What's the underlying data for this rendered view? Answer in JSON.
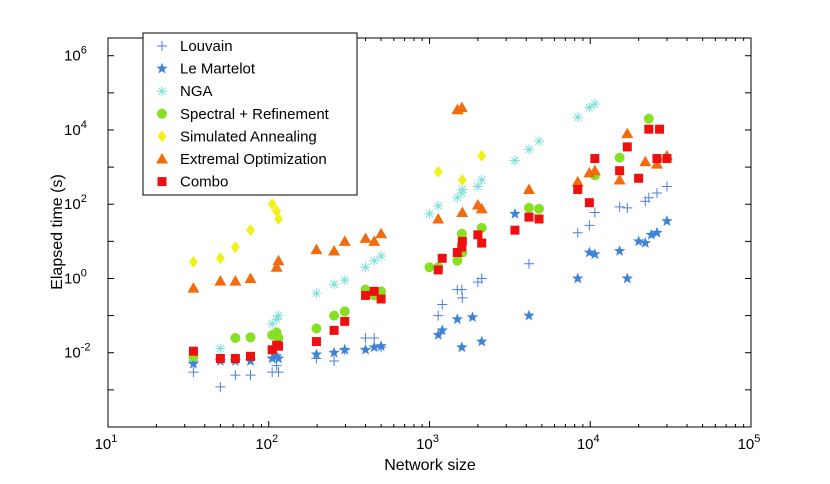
{
  "chart_data": {
    "type": "scatter",
    "title": "",
    "xlabel": "Network size",
    "ylabel": "Elapsed time (s)",
    "xscale": "log",
    "yscale": "log",
    "xlim": [
      10,
      100000
    ],
    "ylim": [
      0.0001,
      3000000
    ],
    "x_ticks": [
      {
        "base": "10",
        "exp": "1"
      },
      {
        "base": "10",
        "exp": "2"
      },
      {
        "base": "10",
        "exp": "3"
      },
      {
        "base": "10",
        "exp": "4"
      },
      {
        "base": "10",
        "exp": "5"
      }
    ],
    "y_ticks": [
      {
        "base": "10",
        "exp": "-2"
      },
      {
        "base": "10",
        "exp": "0"
      },
      {
        "base": "10",
        "exp": "2"
      },
      {
        "base": "10",
        "exp": "4"
      },
      {
        "base": "10",
        "exp": "6"
      }
    ],
    "grid": false,
    "legend_position": "top-left",
    "series": [
      {
        "name": "Louvain",
        "marker": "plus",
        "color": "#4f7fdc",
        "points": [
          [
            34,
            0.006
          ],
          [
            34,
            0.003
          ],
          [
            50,
            0.0012
          ],
          [
            62,
            0.0025
          ],
          [
            77,
            0.0025
          ],
          [
            105,
            0.003
          ],
          [
            112,
            0.0045
          ],
          [
            115,
            0.003
          ],
          [
            198,
            0.007
          ],
          [
            255,
            0.006
          ],
          [
            297,
            0.012
          ],
          [
            400,
            0.025
          ],
          [
            453,
            0.025
          ],
          [
            500,
            0.014
          ],
          [
            1133,
            0.1
          ],
          [
            1200,
            0.2
          ],
          [
            1490,
            0.5
          ],
          [
            1589,
            0.5
          ],
          [
            1600,
            0.3
          ],
          [
            2000,
            0.8
          ],
          [
            2113,
            1.0
          ],
          [
            4158,
            2.5
          ],
          [
            8361,
            17
          ],
          [
            9877,
            27
          ],
          [
            10680,
            60
          ],
          [
            15233,
            85
          ],
          [
            17000,
            80
          ],
          [
            22000,
            120
          ],
          [
            23133,
            150
          ],
          [
            26000,
            200
          ],
          [
            30000,
            300
          ]
        ]
      },
      {
        "name": "Le Martelot",
        "marker": "star",
        "color": "#3e83d8",
        "points": [
          [
            34,
            0.005
          ],
          [
            50,
            0.006
          ],
          [
            62,
            0.006
          ],
          [
            77,
            0.006
          ],
          [
            105,
            0.007
          ],
          [
            112,
            0.008
          ],
          [
            115,
            0.007
          ],
          [
            198,
            0.009
          ],
          [
            255,
            0.01
          ],
          [
            297,
            0.012
          ],
          [
            400,
            0.012
          ],
          [
            453,
            0.014
          ],
          [
            500,
            0.015
          ],
          [
            1133,
            0.03
          ],
          [
            1200,
            0.04
          ],
          [
            1490,
            0.08
          ],
          [
            1589,
            0.014
          ],
          [
            1850,
            0.09
          ],
          [
            2113,
            0.02
          ],
          [
            3400,
            55
          ],
          [
            4158,
            0.1
          ],
          [
            8361,
            1.0
          ],
          [
            9877,
            5
          ],
          [
            10680,
            4.5
          ],
          [
            15233,
            5.5
          ],
          [
            17000,
            1.0
          ],
          [
            20000,
            10
          ],
          [
            22000,
            9
          ],
          [
            24000,
            15
          ],
          [
            26000,
            17
          ],
          [
            30000,
            35
          ]
        ]
      },
      {
        "name": "NGA",
        "marker": "asterisk",
        "color": "#7fe0d8",
        "points": [
          [
            50,
            0.013
          ],
          [
            105,
            0.06
          ],
          [
            112,
            0.08
          ],
          [
            115,
            0.1
          ],
          [
            198,
            0.4
          ],
          [
            255,
            0.7
          ],
          [
            297,
            0.9
          ],
          [
            400,
            2
          ],
          [
            453,
            3
          ],
          [
            500,
            4
          ],
          [
            1000,
            55
          ],
          [
            1133,
            90
          ],
          [
            1490,
            150
          ],
          [
            1589,
            200
          ],
          [
            1600,
            250
          ],
          [
            2000,
            300
          ],
          [
            2113,
            450
          ],
          [
            3400,
            1500
          ],
          [
            4158,
            3000
          ],
          [
            4800,
            5000
          ],
          [
            8361,
            22000
          ],
          [
            9877,
            40000
          ],
          [
            10680,
            50000
          ]
        ]
      },
      {
        "name": "Spectral + Refinement",
        "marker": "circle",
        "color": "#88e024",
        "points": [
          [
            34,
            0.008
          ],
          [
            62,
            0.025
          ],
          [
            77,
            0.026
          ],
          [
            105,
            0.03
          ],
          [
            112,
            0.035
          ],
          [
            115,
            0.025
          ],
          [
            198,
            0.045
          ],
          [
            255,
            0.1
          ],
          [
            297,
            0.13
          ],
          [
            400,
            0.5
          ],
          [
            453,
            0.35
          ],
          [
            500,
            0.45
          ],
          [
            1000,
            2
          ],
          [
            1133,
            2
          ],
          [
            1490,
            3
          ],
          [
            1589,
            16
          ],
          [
            1600,
            5
          ],
          [
            2113,
            23
          ],
          [
            4158,
            80
          ],
          [
            4800,
            75
          ],
          [
            10680,
            600
          ],
          [
            15233,
            1800
          ],
          [
            23133,
            20000
          ]
        ]
      },
      {
        "name": "Simulated Annealing",
        "marker": "diamond",
        "color": "#f0f01a",
        "points": [
          [
            34,
            2.8
          ],
          [
            50,
            3.5
          ],
          [
            62,
            7
          ],
          [
            77,
            20
          ],
          [
            105,
            100
          ],
          [
            112,
            65
          ],
          [
            115,
            40
          ],
          [
            1133,
            750
          ],
          [
            1589,
            35000
          ],
          [
            1600,
            450
          ],
          [
            2113,
            2000
          ]
        ]
      },
      {
        "name": "Extremal Optimization",
        "marker": "triangle",
        "color": "#f26b0e",
        "points": [
          [
            34,
            0.55
          ],
          [
            50,
            0.85
          ],
          [
            62,
            0.85
          ],
          [
            77,
            1.0
          ],
          [
            112,
            2.0
          ],
          [
            115,
            3.0
          ],
          [
            198,
            6
          ],
          [
            255,
            5.5
          ],
          [
            297,
            10
          ],
          [
            400,
            12
          ],
          [
            453,
            10
          ],
          [
            500,
            16
          ],
          [
            1133,
            40
          ],
          [
            1490,
            35000
          ],
          [
            1589,
            40000
          ],
          [
            1600,
            60
          ],
          [
            2000,
            95
          ],
          [
            2113,
            75
          ],
          [
            4158,
            250
          ],
          [
            8361,
            400
          ],
          [
            9877,
            700
          ],
          [
            10680,
            800
          ],
          [
            15233,
            450
          ],
          [
            17000,
            8000
          ],
          [
            22000,
            1400
          ],
          [
            26000,
            1200
          ],
          [
            30000,
            2000
          ]
        ]
      },
      {
        "name": "Combo",
        "marker": "square",
        "color": "#ee0f0f",
        "points": [
          [
            34,
            0.011
          ],
          [
            50,
            0.007
          ],
          [
            62,
            0.007
          ],
          [
            77,
            0.008
          ],
          [
            105,
            0.012
          ],
          [
            112,
            0.016
          ],
          [
            115,
            0.015
          ],
          [
            198,
            0.02
          ],
          [
            255,
            0.04
          ],
          [
            297,
            0.07
          ],
          [
            400,
            0.35
          ],
          [
            453,
            0.45
          ],
          [
            500,
            0.28
          ],
          [
            1133,
            1.7
          ],
          [
            1200,
            3.5
          ],
          [
            1490,
            5
          ],
          [
            1589,
            7
          ],
          [
            1600,
            10
          ],
          [
            2000,
            15
          ],
          [
            2113,
            9
          ],
          [
            3400,
            20
          ],
          [
            4158,
            45
          ],
          [
            4800,
            40
          ],
          [
            8361,
            250
          ],
          [
            9877,
            110
          ],
          [
            10680,
            1700
          ],
          [
            15233,
            800
          ],
          [
            17000,
            3500
          ],
          [
            20000,
            500
          ],
          [
            23133,
            10500
          ],
          [
            26000,
            1700
          ],
          [
            27000,
            10500
          ],
          [
            30000,
            1700
          ]
        ]
      }
    ]
  }
}
